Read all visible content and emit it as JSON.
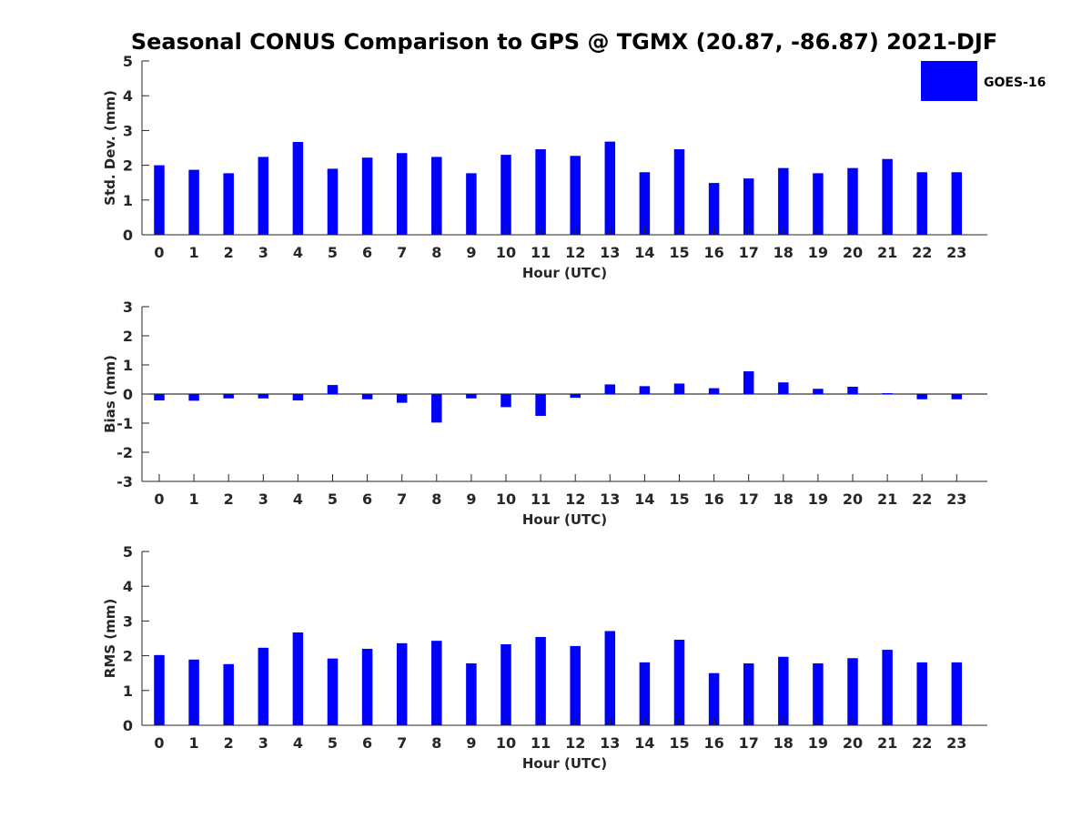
{
  "title": "Seasonal CONUS Comparison to GPS @ TGMX (20.87, -86.87) 2021-DJF",
  "legend": {
    "label": "GOES-16",
    "color": "#0000ff"
  },
  "chart_data": [
    {
      "type": "bar",
      "name": "std-dev",
      "xlabel": "Hour (UTC)",
      "ylabel": "Std. Dev. (mm)",
      "ylim": [
        0,
        5
      ],
      "yticks": [
        0,
        1,
        2,
        3,
        4,
        5
      ],
      "categories": [
        "0",
        "1",
        "2",
        "3",
        "4",
        "5",
        "6",
        "7",
        "8",
        "9",
        "10",
        "11",
        "12",
        "13",
        "14",
        "15",
        "16",
        "17",
        "18",
        "19",
        "20",
        "21",
        "22",
        "23"
      ],
      "series": [
        {
          "name": "GOES-16",
          "values": [
            2.0,
            1.87,
            1.77,
            2.24,
            2.67,
            1.9,
            2.22,
            2.35,
            2.24,
            1.77,
            2.3,
            2.46,
            2.27,
            2.68,
            1.8,
            2.46,
            1.49,
            1.62,
            1.92,
            1.77,
            1.92,
            2.18,
            1.8,
            1.8
          ]
        }
      ]
    },
    {
      "type": "bar",
      "name": "bias",
      "xlabel": "Hour (UTC)",
      "ylabel": "Bias (mm)",
      "ylim": [
        -3,
        3
      ],
      "yticks": [
        -3,
        -2,
        -1,
        0,
        1,
        2,
        3
      ],
      "categories": [
        "0",
        "1",
        "2",
        "3",
        "4",
        "5",
        "6",
        "7",
        "8",
        "9",
        "10",
        "11",
        "12",
        "13",
        "14",
        "15",
        "16",
        "17",
        "18",
        "19",
        "20",
        "21",
        "22",
        "23"
      ],
      "series": [
        {
          "name": "GOES-16",
          "values": [
            -0.22,
            -0.23,
            -0.15,
            -0.15,
            -0.22,
            0.31,
            -0.18,
            -0.3,
            -0.98,
            -0.15,
            -0.45,
            -0.75,
            -0.13,
            0.33,
            0.27,
            0.36,
            0.2,
            0.78,
            0.4,
            0.18,
            0.25,
            0.03,
            -0.18,
            -0.18
          ]
        }
      ]
    },
    {
      "type": "bar",
      "name": "rms",
      "xlabel": "Hour (UTC)",
      "ylabel": "RMS (mm)",
      "ylim": [
        0,
        5
      ],
      "yticks": [
        0,
        1,
        2,
        3,
        4,
        5
      ],
      "categories": [
        "0",
        "1",
        "2",
        "3",
        "4",
        "5",
        "6",
        "7",
        "8",
        "9",
        "10",
        "11",
        "12",
        "13",
        "14",
        "15",
        "16",
        "17",
        "18",
        "19",
        "20",
        "21",
        "22",
        "23"
      ],
      "series": [
        {
          "name": "GOES-16",
          "values": [
            2.02,
            1.89,
            1.76,
            2.23,
            2.67,
            1.92,
            2.2,
            2.36,
            2.43,
            1.78,
            2.33,
            2.54,
            2.28,
            2.71,
            1.81,
            2.46,
            1.5,
            1.78,
            1.97,
            1.78,
            1.93,
            2.17,
            1.81,
            1.81
          ]
        }
      ]
    }
  ]
}
